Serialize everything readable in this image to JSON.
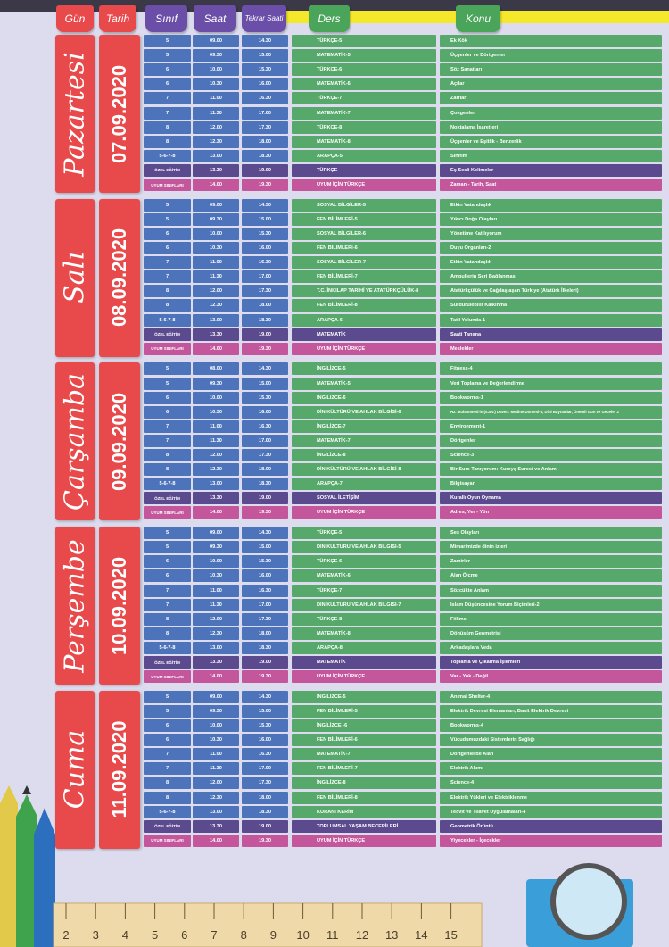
{
  "header": {
    "day": "Gün",
    "date": "Tarih",
    "grade": "Sınıf",
    "time": "Saat",
    "repeat": "Tekrar Saati",
    "lesson": "Ders",
    "topic": "Konu"
  },
  "days": [
    {
      "day": "Pazartesi",
      "date": "07.09.2020",
      "rows": [
        [
          "5",
          "09.00",
          "14.30",
          "TÜRKÇE-5",
          "Ek Kök"
        ],
        [
          "5",
          "09.30",
          "15.00",
          "MATEMATİK-5",
          "Üçgenler ve Dörtgenler"
        ],
        [
          "6",
          "10.00",
          "15.30",
          "TÜRKÇE-6",
          "Söz Sanatları"
        ],
        [
          "6",
          "10.30",
          "16.00",
          "MATEMATİK-6",
          "Açılar"
        ],
        [
          "7",
          "11.00",
          "16.30",
          "TÜRKÇE-7",
          "Zarflar"
        ],
        [
          "7",
          "11.30",
          "17.00",
          "MATEMATİK-7",
          "Çokgenler"
        ],
        [
          "8",
          "12.00",
          "17.30",
          "TÜRKÇE-8",
          "Noktalama İşaretleri"
        ],
        [
          "8",
          "12.30",
          "18.00",
          "MATEMATİK-8",
          "Üçgenler ve Eşitlik - Benzerlik"
        ],
        [
          "5-6-7-8",
          "13.00",
          "18.30",
          "ARAPÇA-5",
          "Sınıfım"
        ],
        [
          "ÖZEL EĞİTİM",
          "13.30",
          "19.00",
          "TÜRKÇE",
          "Eş Sesli Kelimeler"
        ],
        [
          "UYUM SINIFLARI",
          "14.00",
          "19.30",
          "UYUM İÇİN TÜRKÇE",
          "Zaman - Tarih, Saat"
        ]
      ]
    },
    {
      "day": "Salı",
      "date": "08.09.2020",
      "rows": [
        [
          "5",
          "09.00",
          "14.30",
          "SOSYAL BİLGİLER-5",
          "Etkin Vatandaşlık"
        ],
        [
          "5",
          "09.30",
          "15.00",
          "FEN BİLİMLERİ-5",
          "Yıkıcı Doğa Olayları"
        ],
        [
          "6",
          "10.00",
          "15.30",
          "SOSYAL BİLGİLER-6",
          "Yönetime Katılıyorum"
        ],
        [
          "6",
          "10.30",
          "16.00",
          "FEN BİLİMLERİ-6",
          "Duyu Organları-2"
        ],
        [
          "7",
          "11.00",
          "16.30",
          "SOSYAL BİLGİLER-7",
          "Etkin Vatandaşlık"
        ],
        [
          "7",
          "11.30",
          "17.00",
          "FEN BİLİMLERİ-7",
          "Ampullerin Seri Bağlanması"
        ],
        [
          "8",
          "12.00",
          "17.30",
          "T.C. İNKILAP TARİHİ VE ATATÜRKÇÜLÜK-8",
          "Atatürkçülük ve Çağdaşlaşan Türkiye (Atatürk İlkeleri)"
        ],
        [
          "8",
          "12.30",
          "18.00",
          "FEN BİLİMLERİ-8",
          "Sürdürülebilir Kalkınma"
        ],
        [
          "5-6-7-8",
          "13.00",
          "18.30",
          "ARAPÇA-6",
          "Tatil Yolunda-1"
        ],
        [
          "ÖZEL EĞİTİM",
          "13.30",
          "19.00",
          "MATEMATİK",
          "Saati Tanıma"
        ],
        [
          "UYUM SINIFLARI",
          "14.00",
          "19.30",
          "UYUM İÇİN TÜRKÇE",
          "Meslekler"
        ]
      ]
    },
    {
      "day": "Çarşamba",
      "date": "09.09.2020",
      "rows": [
        [
          "5",
          "08.00",
          "14.30",
          "İNGİLİZCE-5",
          "Fitness-4"
        ],
        [
          "5",
          "09.30",
          "15.00",
          "MATEMATİK-5",
          "Veri Toplama ve Değerlendirme"
        ],
        [
          "6",
          "10.00",
          "15.30",
          "İNGİLİZCE-6",
          "Bookworms-1"
        ],
        [
          "6",
          "10.30",
          "16.00",
          "DİN KÜLTÜRÜ VE AHLAK BİLGİSİ-6",
          "Hz. Muhammed'in (s.a.v.) Daveti: Medine Dönemi-3, Dini Bayramlar, Önemli Gün ve Geceler 2"
        ],
        [
          "7",
          "11.00",
          "16.30",
          "İNGİLİZCE-7",
          "Environment-1"
        ],
        [
          "7",
          "11.30",
          "17.00",
          "MATEMATİK-7",
          "Dörtgenler"
        ],
        [
          "8",
          "12.00",
          "17.30",
          "İNGİLİZCE-8",
          "Science-3"
        ],
        [
          "8",
          "12.30",
          "18.00",
          "DİN KÜLTÜRÜ VE AHLAK BİLGİSİ-8",
          "Bir Sure Tanıyorum: Kureyş Suresi ve Anlamı"
        ],
        [
          "5-6-7-8",
          "13.00",
          "18.30",
          "ARAPÇA-7",
          "Bilgisayar"
        ],
        [
          "ÖZEL EĞİTİM",
          "13.30",
          "19.00",
          "SOSYAL İLETİŞİM",
          "Kurallı Oyun Oynama"
        ],
        [
          "UYUM SINIFLARI",
          "14.00",
          "19.30",
          "UYUM İÇİN TÜRKÇE",
          "Adres, Yer - Yön"
        ]
      ]
    },
    {
      "day": "Perşembe",
      "date": "10.09.2020",
      "rows": [
        [
          "5",
          "09.00",
          "14.30",
          "TÜRKÇE-5",
          "Ses Olayları"
        ],
        [
          "5",
          "09.30",
          "15.00",
          "DİN KÜLTÜRÜ VE AHLAK BİLGİSİ-5",
          "Mimarimizde dinin izleri"
        ],
        [
          "6",
          "10.00",
          "15.30",
          "TÜRKÇE-6",
          "Zamirler"
        ],
        [
          "6",
          "10.30",
          "16.00",
          "MATEMATİK-6",
          "Alan Ölçme"
        ],
        [
          "7",
          "11.00",
          "16.30",
          "TÜRKÇE-7",
          "Sözcükte Anlam"
        ],
        [
          "7",
          "11.30",
          "17.00",
          "DİN KÜLTÜRÜ VE AHLAK BİLGİSİ-7",
          "İslam Düşüncesine Yorum Biçimleri-2"
        ],
        [
          "8",
          "12.00",
          "17.30",
          "TÜRKÇE-8",
          "Fiilimsi"
        ],
        [
          "8",
          "12.30",
          "18.00",
          "MATEMATİK-8",
          "Dönüşüm Geometrisi"
        ],
        [
          "5-6-7-8",
          "13.00",
          "18.30",
          "ARAPÇA-8",
          "Arkadaşlara Veda"
        ],
        [
          "ÖZEL EĞİTİM",
          "13.30",
          "19.00",
          "MATEMATİK",
          "Toplama ve Çıkarma İşlemleri"
        ],
        [
          "UYUM SINIFLARI",
          "14.00",
          "19.30",
          "UYUM İÇİN TÜRKÇE",
          "Var - Yok - Değil"
        ]
      ]
    },
    {
      "day": "Cuma",
      "date": "11.09.2020",
      "rows": [
        [
          "5",
          "09.00",
          "14.30",
          "İNGİLİZCE-5",
          "Animal Shelter-4"
        ],
        [
          "5",
          "09.30",
          "15.00",
          "FEN BİLİMLERİ-5",
          "Elektrik Devresi Elemanları, Basit Elektrik Devresi"
        ],
        [
          "6",
          "10.00",
          "15.30",
          "İNGİLİZCE -6",
          "Bookworms-4"
        ],
        [
          "6",
          "10.30",
          "16.00",
          "FEN BİLİMLERİ-6",
          "Vücudumuzdaki Sistemlerin Sağlığı"
        ],
        [
          "7",
          "11.00",
          "16.30",
          "MATEMATİK-7",
          "Dörtgenlerde Alan"
        ],
        [
          "7",
          "11.30",
          "17.00",
          "FEN BİLİMLERİ-7",
          "Elektrik Akımı"
        ],
        [
          "8",
          "12.00",
          "17.30",
          "İNGİLİZCE-8",
          "Science-4"
        ],
        [
          "8",
          "12.30",
          "18.00",
          "FEN BİLİMLERİ-8",
          "Elektrik Yükleri ve Elektriklenme"
        ],
        [
          "5-6-7-8",
          "13.00",
          "18.30",
          "KURANI KERİM",
          "Tecvit ve Tilavet Uygulamaları-4"
        ],
        [
          "ÖZEL EĞİTİM",
          "13.30",
          "19.00",
          "TOPLUMSAL YAŞAM BECERİLERİ",
          "Geometrik Örüntü"
        ],
        [
          "UYUM SINIFLARI",
          "14.00",
          "19.30",
          "UYUM İÇİN TÜRKÇE",
          "Yiyecekler - İçecekler"
        ]
      ]
    }
  ],
  "ruler": [
    2,
    3,
    4,
    5,
    6,
    7,
    8,
    9,
    10,
    11,
    12,
    13,
    14,
    15
  ]
}
